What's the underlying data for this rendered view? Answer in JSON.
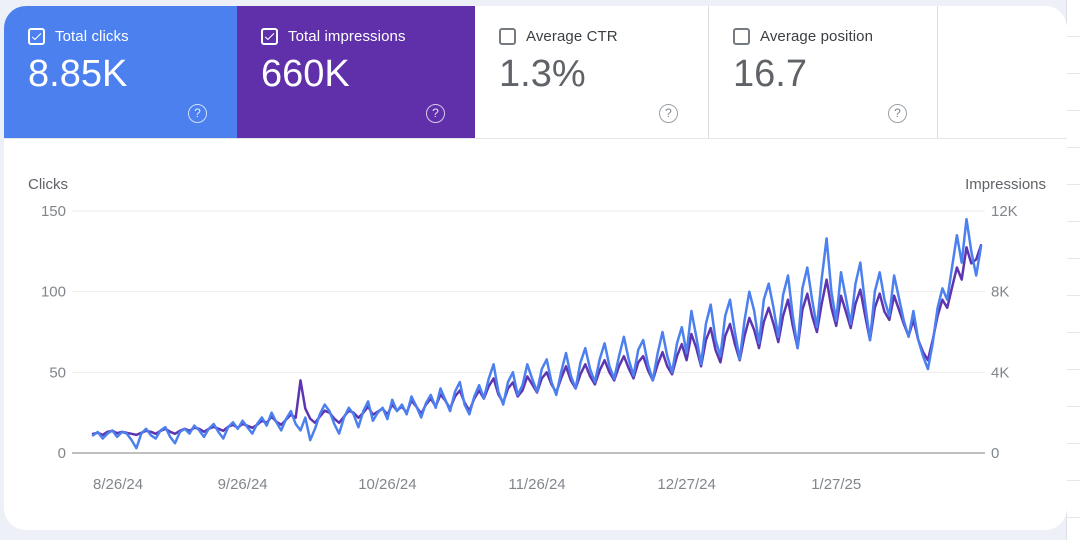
{
  "metrics": {
    "clicks": {
      "label": "Total clicks",
      "value": "8.85K",
      "checked": true,
      "help_glyph": "?"
    },
    "impressions": {
      "label": "Total impressions",
      "value": "660K",
      "checked": true,
      "help_glyph": "?"
    },
    "ctr": {
      "label": "Average CTR",
      "value": "1.3%",
      "checked": false,
      "help_glyph": "?"
    },
    "position": {
      "label": "Average position",
      "value": "16.7",
      "checked": false,
      "help_glyph": "?"
    }
  },
  "colors": {
    "clicks_blue": "#4b80ee",
    "impressions_purple": "#5f30aa",
    "line_blue": "#4b80ee",
    "line_purple": "#5e35b1",
    "gridline": "#ebebeb",
    "baseline": "#9a9a9a",
    "tick_text": "#80868b",
    "card_bg": "#ffffff",
    "page_bg": "#edf0f6"
  },
  "chart_data": {
    "type": "line",
    "left_axis": {
      "label": "Clicks",
      "ticks": [
        150,
        100,
        50,
        0
      ],
      "max": 150
    },
    "right_axis": {
      "label": "Impressions",
      "ticks": [
        "12K",
        "8K",
        "4K",
        "0"
      ],
      "tick_values": [
        12000,
        8000,
        4000,
        0
      ],
      "max": 12000
    },
    "x_ticks": {
      "labels": [
        "8/26/24",
        "9/26/24",
        "10/26/24",
        "11/26/24",
        "12/27/24",
        "1/27/25"
      ],
      "day_index": [
        0,
        31,
        61,
        92,
        123,
        154
      ],
      "total_days": 184
    },
    "grid": "horizontal-only",
    "legend": "none (encoded by metric cards)",
    "series": [
      {
        "name": "Clicks",
        "axis": "left",
        "color": "#4b80ee",
        "values": [
          11,
          13,
          9,
          12,
          14,
          10,
          13,
          12,
          8,
          3,
          12,
          15,
          11,
          9,
          14,
          16,
          10,
          6,
          13,
          15,
          12,
          17,
          14,
          10,
          15,
          18,
          13,
          9,
          16,
          19,
          15,
          20,
          16,
          12,
          18,
          22,
          17,
          25,
          19,
          14,
          21,
          26,
          18,
          14,
          22,
          8,
          15,
          24,
          30,
          26,
          18,
          12,
          22,
          28,
          24,
          16,
          26,
          32,
          20,
          25,
          28,
          21,
          33,
          26,
          30,
          24,
          35,
          29,
          22,
          31,
          36,
          28,
          40,
          33,
          26,
          38,
          44,
          30,
          24,
          35,
          42,
          34,
          46,
          55,
          38,
          30,
          44,
          50,
          36,
          42,
          55,
          46,
          38,
          52,
          58,
          44,
          36,
          50,
          62,
          48,
          40,
          56,
          65,
          52,
          44,
          58,
          68,
          54,
          46,
          60,
          72,
          58,
          48,
          64,
          70,
          55,
          45,
          62,
          75,
          60,
          50,
          68,
          78,
          62,
          88,
          72,
          55,
          80,
          92,
          70,
          60,
          85,
          95,
          75,
          58,
          82,
          100,
          88,
          68,
          95,
          105,
          90,
          72,
          98,
          110,
          85,
          65,
          102,
          115,
          95,
          78,
          108,
          133,
          100,
          82,
          112,
          96,
          80,
          105,
          118,
          92,
          70,
          100,
          112,
          95,
          85,
          110,
          96,
          82,
          72,
          88,
          70,
          60,
          52,
          68,
          90,
          102,
          95,
          115,
          135,
          118,
          145,
          125,
          110,
          128
        ]
      },
      {
        "name": "Impressions",
        "axis": "right",
        "color": "#5e35b1",
        "values": [
          950,
          1000,
          900,
          1050,
          1100,
          980,
          1050,
          1000,
          950,
          900,
          1000,
          1100,
          1050,
          950,
          1100,
          1200,
          1050,
          950,
          1100,
          1200,
          1100,
          1250,
          1200,
          1050,
          1200,
          1300,
          1200,
          1100,
          1300,
          1400,
          1250,
          1450,
          1350,
          1250,
          1400,
          1600,
          1500,
          1800,
          1550,
          1400,
          1650,
          1900,
          1750,
          3600,
          2200,
          1700,
          1500,
          1800,
          2100,
          2000,
          1700,
          1500,
          1800,
          2100,
          2000,
          1750,
          2000,
          2300,
          1900,
          2050,
          2200,
          1900,
          2400,
          2100,
          2300,
          2000,
          2600,
          2300,
          1950,
          2400,
          2700,
          2300,
          2900,
          2600,
          2200,
          2800,
          3100,
          2500,
          2100,
          2700,
          3100,
          2700,
          3300,
          3700,
          2900,
          2500,
          3200,
          3500,
          2800,
          3100,
          3800,
          3400,
          3000,
          3700,
          4000,
          3400,
          3000,
          3700,
          4300,
          3600,
          3200,
          3900,
          4400,
          3800,
          3400,
          4100,
          4600,
          4000,
          3600,
          4300,
          4800,
          4200,
          3700,
          4500,
          4800,
          4100,
          3600,
          4400,
          5000,
          4300,
          3900,
          4800,
          5400,
          4600,
          5900,
          5200,
          4300,
          5600,
          6200,
          5100,
          4500,
          5800,
          6400,
          5400,
          4600,
          5800,
          6700,
          6100,
          5200,
          6500,
          7200,
          6400,
          5500,
          6800,
          7600,
          6300,
          5200,
          7100,
          7900,
          6800,
          6000,
          7400,
          8600,
          7200,
          6300,
          7800,
          7000,
          6200,
          7400,
          8100,
          6800,
          5600,
          7200,
          7900,
          7000,
          6600,
          7800,
          7100,
          6400,
          5800,
          6600,
          5600,
          5000,
          4600,
          5600,
          6800,
          7600,
          7200,
          8200,
          9200,
          8600,
          10200,
          9400,
          9600,
          10300
        ]
      }
    ]
  }
}
